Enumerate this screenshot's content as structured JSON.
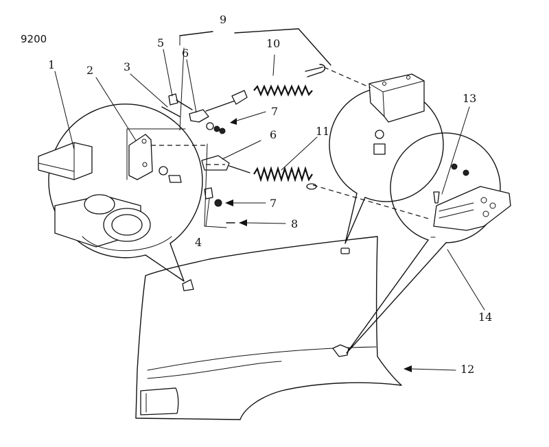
{
  "figure_code": "9200",
  "callouts": [
    {
      "key": "c1",
      "label": "1"
    },
    {
      "key": "c2",
      "label": "2"
    },
    {
      "key": "c3",
      "label": "3"
    },
    {
      "key": "c4",
      "label": "4"
    },
    {
      "key": "c5",
      "label": "5"
    },
    {
      "key": "c6a",
      "label": "6"
    },
    {
      "key": "c6b",
      "label": "6"
    },
    {
      "key": "c7a",
      "label": "7"
    },
    {
      "key": "c7b",
      "label": "7"
    },
    {
      "key": "c8",
      "label": "8"
    },
    {
      "key": "c9",
      "label": "9"
    },
    {
      "key": "c10",
      "label": "10"
    },
    {
      "key": "c11",
      "label": "11"
    },
    {
      "key": "c12",
      "label": "12"
    },
    {
      "key": "c13",
      "label": "13"
    },
    {
      "key": "c14",
      "label": "14"
    }
  ]
}
